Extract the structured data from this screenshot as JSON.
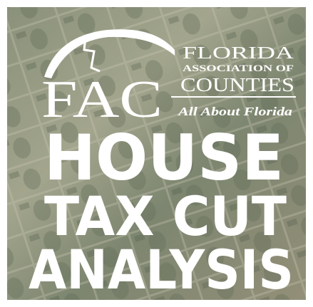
{
  "logo": {
    "initials": "FAC",
    "line1": "FLORIDA",
    "line2": "ASSOCIATION OF",
    "line3": "COUNTIES",
    "tagline": "All About Florida"
  },
  "headline": [
    "HOUSE",
    "TAX CUT",
    "ANALYSIS"
  ]
}
